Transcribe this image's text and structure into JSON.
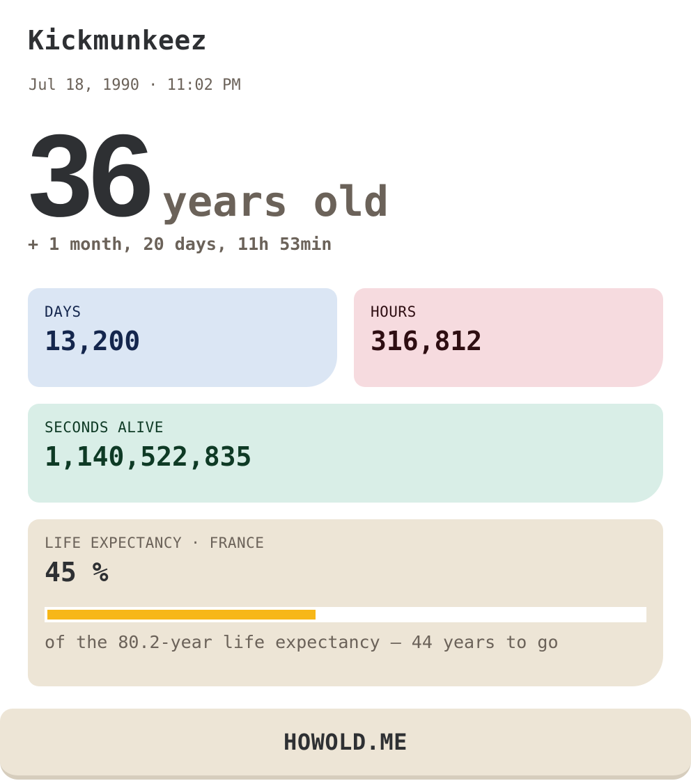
{
  "profile": {
    "name": "Kickmunkeez",
    "birth": "Jul 18, 1990 · 11:02 PM"
  },
  "age": {
    "years": "36",
    "unit": "years old",
    "extra": "+ 1 month, 20 days, 11h 53min"
  },
  "stats": {
    "days": {
      "label": "DAYS",
      "value": "13,200"
    },
    "hours": {
      "label": "HOURS",
      "value": "316,812"
    },
    "seconds": {
      "label": "SECONDS ALIVE",
      "value": "1,140,522,835"
    }
  },
  "life": {
    "label": "LIFE EXPECTANCY · FRANCE",
    "percent_text": "45 %",
    "progress": 0.45,
    "note": "of the 80.2-year life expectancy — 44 years to go",
    "bar_color": "#f7b718"
  },
  "footer": {
    "brand": "HOWOLD.ME"
  },
  "colors": {
    "days_bg": "#dbe6f4",
    "hours_bg": "#f6dbdf",
    "seconds_bg": "#d9eee7",
    "life_bg": "#ede5d6"
  }
}
